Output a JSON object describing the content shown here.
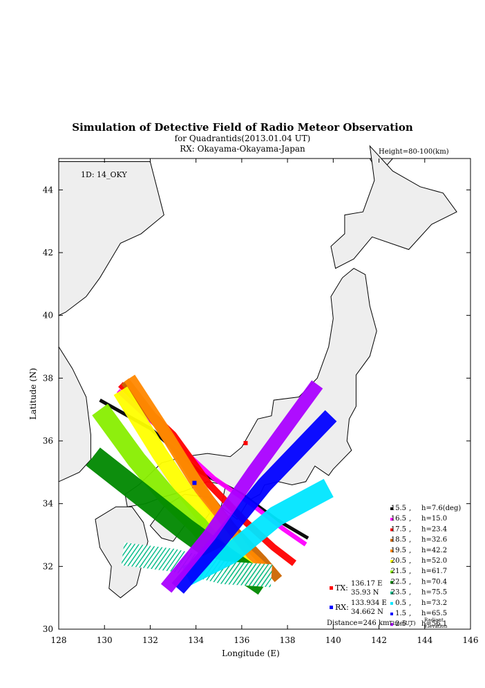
{
  "title": "Simulation of Detective Field of Radio Meteor Observation",
  "subtitle": "for Quadrantids(2013.01.04 UT)",
  "rx_line": "RX: Okayama-Okayama-Japan",
  "height_note": "Height=80-100(km)",
  "station_id": "1D: 14_OKY",
  "tx": {
    "label": "TX:",
    "lon_text": "136.17 E",
    "lat_text": "35.93 N",
    "lon": 136.17,
    "lat": 35.93,
    "color": "#ff0000"
  },
  "rx": {
    "label": "RX:",
    "lon_text": "133.934 E",
    "lat_text": "34.662 N",
    "lon": 133.934,
    "lat": 34.662,
    "color": "#0000ff"
  },
  "distance_text": "Distance=246 km",
  "legend_footer": {
    "time": "Time(UT)",
    "radiant_line1": "Radiant",
    "radiant_line2": "Elevation"
  },
  "chart_data": {
    "type": "scatter",
    "title": "Simulation of Detective Field of Radio Meteor Observation",
    "xlabel": "Longitude (E)",
    "ylabel": "Latitude (N)",
    "xlim": [
      128,
      146
    ],
    "ylim": [
      30,
      45
    ],
    "xticks": [
      128,
      130,
      132,
      134,
      136,
      138,
      140,
      142,
      144,
      146
    ],
    "yticks": [
      30,
      32,
      34,
      36,
      38,
      40,
      42,
      44
    ],
    "grid": false,
    "legend_position": "bottom-right",
    "series": [
      {
        "time": "15.5",
        "elevation": "h=7.6(deg)",
        "color": "#000000",
        "path": [
          [
            129.8,
            37.3
          ],
          [
            132.0,
            36.4
          ],
          [
            134.2,
            35.0
          ],
          [
            136.0,
            34.3
          ],
          [
            137.5,
            33.5
          ],
          [
            138.9,
            32.9
          ]
        ],
        "width": 0.15
      },
      {
        "time": "16.5",
        "elevation": "h=15.0",
        "color": "#ff00ff",
        "path": [
          [
            130.6,
            37.6
          ],
          [
            133.0,
            36.0
          ],
          [
            134.8,
            34.8
          ],
          [
            136.4,
            34.0
          ],
          [
            137.8,
            33.2
          ],
          [
            138.8,
            32.7
          ]
        ],
        "width": 0.2
      },
      {
        "time": "17.5",
        "elevation": "h=23.4",
        "color": "#ff0000",
        "path": [
          [
            130.7,
            37.8
          ],
          [
            133.0,
            36.2
          ],
          [
            134.6,
            34.6
          ],
          [
            136.2,
            33.4
          ],
          [
            137.4,
            32.6
          ],
          [
            138.3,
            32.1
          ]
        ],
        "width": 0.3
      },
      {
        "time": "18.5",
        "elevation": "h=32.6",
        "color": "#cc6600",
        "path": [
          [
            130.9,
            37.9
          ],
          [
            132.9,
            36.0
          ],
          [
            134.2,
            34.5
          ],
          [
            135.6,
            33.2
          ],
          [
            136.9,
            32.2
          ],
          [
            137.6,
            31.6
          ]
        ],
        "width": 0.42
      },
      {
        "time": "19.5",
        "elevation": "h=42.2",
        "color": "#ff8800",
        "path": [
          [
            131.1,
            38.0
          ],
          [
            132.8,
            36.1
          ],
          [
            133.9,
            34.8
          ],
          [
            135.0,
            33.6
          ],
          [
            136.2,
            32.4
          ],
          [
            137.1,
            31.8
          ]
        ],
        "width": 0.55
      },
      {
        "time": "20.5",
        "elevation": "h=52.0",
        "color": "#ffff00",
        "path": [
          [
            130.7,
            37.6
          ],
          [
            132.4,
            35.6
          ],
          [
            133.6,
            34.3
          ],
          [
            134.8,
            33.2
          ],
          [
            136.0,
            32.1
          ],
          [
            136.9,
            31.5
          ]
        ],
        "width": 0.7
      },
      {
        "time": "21.5",
        "elevation": "h=61.7",
        "color": "#88ee00",
        "path": [
          [
            129.8,
            37.0
          ],
          [
            131.4,
            35.4
          ],
          [
            132.8,
            34.2
          ],
          [
            134.1,
            33.3
          ],
          [
            135.3,
            32.2
          ],
          [
            136.1,
            31.7
          ]
        ],
        "width": 0.85
      },
      {
        "time": "22.5",
        "elevation": "h=70.4",
        "color": "#008800",
        "path": [
          [
            129.5,
            35.5
          ],
          [
            131.6,
            34.3
          ],
          [
            133.5,
            33.2
          ],
          [
            135.4,
            32.2
          ],
          [
            137.0,
            31.4
          ]
        ],
        "width": 1.0
      },
      {
        "time": "23.5",
        "elevation": "h=75.5",
        "color": "#00bb88",
        "path": [
          [
            130.8,
            32.4
          ],
          [
            133.0,
            32.2
          ],
          [
            135.2,
            31.8
          ],
          [
            137.3,
            31.7
          ]
        ],
        "width": 1.0,
        "hatched": true
      },
      {
        "time": "0.5",
        "elevation": "h=73.2",
        "color": "#00e6ff",
        "path": [
          [
            133.6,
            31.7
          ],
          [
            135.5,
            32.4
          ],
          [
            137.5,
            33.6
          ],
          [
            139.8,
            34.5
          ]
        ],
        "width": 0.9
      },
      {
        "time": "1.5",
        "elevation": "h=65.5",
        "color": "#0000ff",
        "path": [
          [
            133.2,
            31.3
          ],
          [
            135.0,
            32.8
          ],
          [
            137.0,
            34.6
          ],
          [
            139.9,
            36.8
          ]
        ],
        "width": 0.7
      },
      {
        "time": "2.5",
        "elevation": "h=56.1",
        "color": "#aa00ff",
        "path": [
          [
            132.7,
            31.3
          ],
          [
            134.6,
            33.0
          ],
          [
            136.5,
            35.0
          ],
          [
            139.3,
            37.8
          ]
        ],
        "width": 0.6
      }
    ]
  }
}
